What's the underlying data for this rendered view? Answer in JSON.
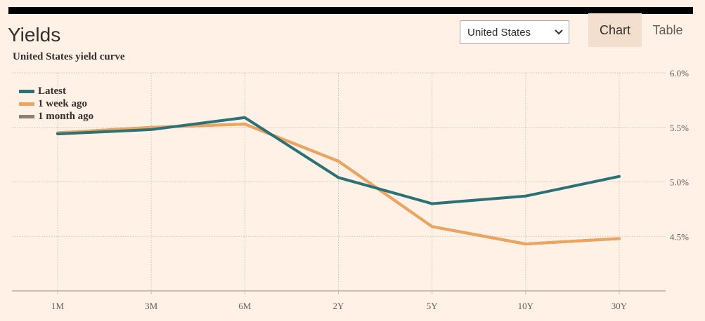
{
  "header": {
    "title": "Yields",
    "subtitle": "United States yield curve"
  },
  "controls": {
    "country_value": "United States",
    "chart_label": "Chart",
    "table_label": "Table"
  },
  "colors": {
    "background": "#fff1e5",
    "latest": "#2b7276",
    "week": "#eda45e",
    "month": "#8f806d",
    "grid": "#ccc1b7"
  },
  "chart_data": {
    "type": "line",
    "title": "United States yield curve",
    "categories": [
      "1M",
      "3M",
      "6M",
      "2Y",
      "5Y",
      "10Y",
      "30Y"
    ],
    "ylim": [
      4.0,
      6.0
    ],
    "yticks": [
      4.5,
      5.0,
      5.5,
      6.0
    ],
    "ytick_labels": [
      "4.5%",
      "5.0%",
      "5.5%",
      "6.0%"
    ],
    "grid": true,
    "legend_position": "top-left",
    "series": [
      {
        "name": "Latest",
        "color": "#2b7276",
        "values": [
          5.44,
          5.48,
          5.59,
          5.04,
          4.8,
          4.87,
          5.05
        ]
      },
      {
        "name": "1 week ago",
        "color": "#eda45e",
        "values": [
          5.45,
          5.5,
          5.53,
          5.19,
          4.59,
          4.43,
          4.48
        ]
      },
      {
        "name": "1 month ago",
        "color": "#8f806d",
        "values": [
          5.45,
          5.5,
          5.53,
          5.19,
          4.59,
          4.43,
          4.48
        ]
      }
    ]
  }
}
